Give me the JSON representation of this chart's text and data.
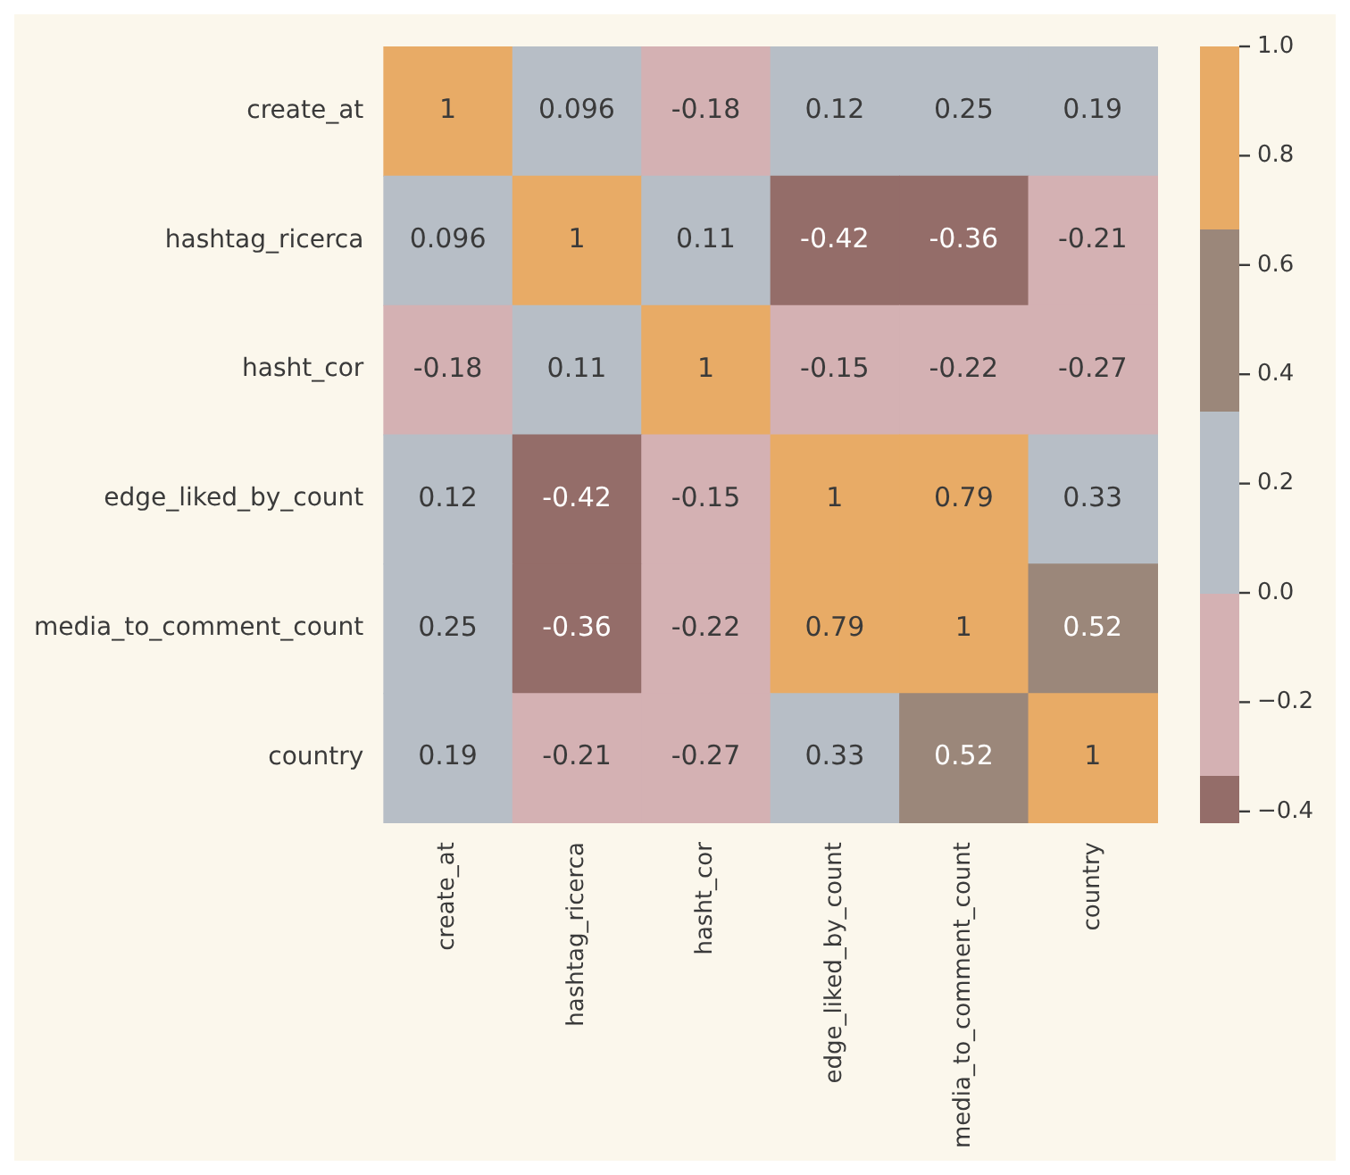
{
  "chart_data": {
    "type": "heatmap",
    "categories": [
      "create_at",
      "hashtag_ricerca",
      "hasht_cor",
      "edge_liked_by_count",
      "media_to_comment_count",
      "country"
    ],
    "y_categories": [
      "create_at",
      "hashtag_ricerca",
      "hasht_cor",
      "edge_liked_by_count",
      "media_to_comment_count",
      "country"
    ],
    "cells": [
      [
        1,
        0.096,
        -0.18,
        0.12,
        0.25,
        0.19
      ],
      [
        0.096,
        1,
        0.11,
        -0.42,
        -0.36,
        -0.21
      ],
      [
        -0.18,
        0.11,
        1,
        -0.15,
        -0.22,
        -0.27
      ],
      [
        0.12,
        -0.42,
        -0.15,
        1,
        0.79,
        0.33
      ],
      [
        0.25,
        -0.36,
        -0.22,
        0.79,
        1,
        0.52
      ],
      [
        0.19,
        -0.21,
        -0.27,
        0.33,
        0.52,
        1
      ]
    ],
    "data_labels": true,
    "clim": [
      -0.42,
      1
    ],
    "cticks": [
      {
        "value": -0.4,
        "label": "−0.4"
      },
      {
        "value": -0.2,
        "label": "−0.2"
      },
      {
        "value": 0,
        "label": "0.0"
      },
      {
        "value": 0.2,
        "label": "0.2"
      },
      {
        "value": 0.4,
        "label": "0.4"
      },
      {
        "value": 0.6,
        "label": "0.6"
      },
      {
        "value": 0.8,
        "label": "0.8"
      },
      {
        "value": 1,
        "label": "1.0"
      }
    ],
    "colors": [
      "#946d69",
      "#d4b1b3",
      "#b7bec6",
      "#9b877a",
      "#e8ab66"
    ]
  }
}
